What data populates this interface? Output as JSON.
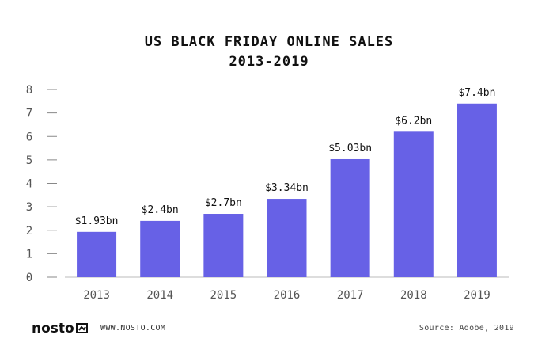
{
  "chart_data": {
    "type": "bar",
    "title_line1": "US BLACK FRIDAY ONLINE SALES",
    "title_line2": "2013-2019",
    "categories": [
      "2013",
      "2014",
      "2015",
      "2016",
      "2017",
      "2018",
      "2019"
    ],
    "values": [
      1.93,
      2.4,
      2.7,
      3.34,
      5.03,
      6.2,
      7.4
    ],
    "data_labels": [
      "$1.93bn",
      "$2.4bn",
      "$2.7bn",
      "$3.34bn",
      "$5.03bn",
      "$6.2bn",
      "$7.4bn"
    ],
    "yticks": [
      0,
      1,
      2,
      3,
      4,
      5,
      6,
      7,
      8
    ],
    "ylim": [
      0,
      8
    ],
    "xlabel": "",
    "ylabel": "",
    "bar_color": "#6761e6",
    "grid": false
  },
  "footer": {
    "logo": "nosto",
    "url": "WWW.NOSTO.COM",
    "source": "Source: Adobe, 2019"
  }
}
